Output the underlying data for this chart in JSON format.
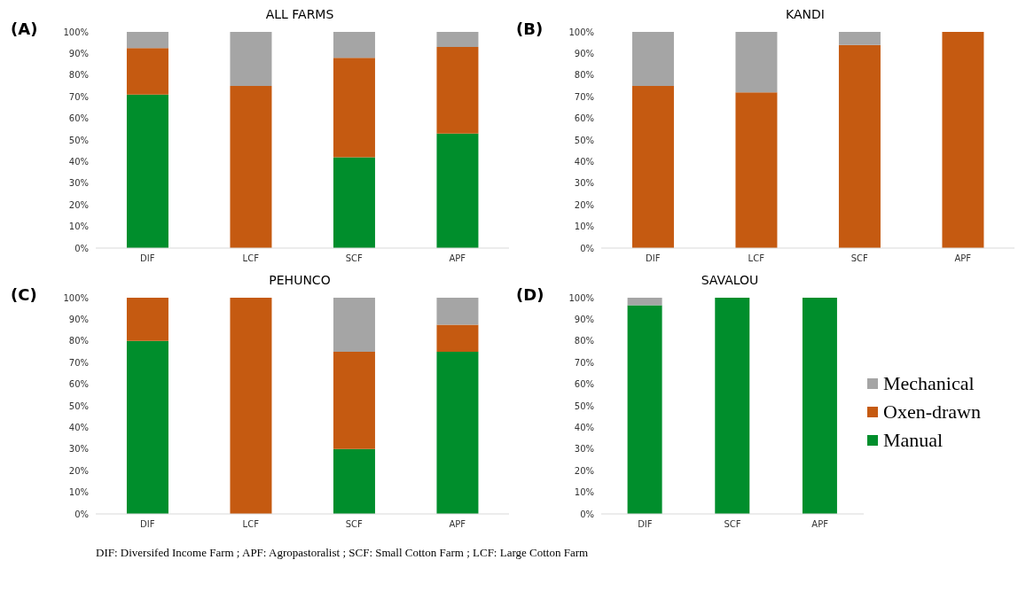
{
  "chart_data": [
    {
      "type": "bar",
      "title": "ALL FARMS",
      "annotations": [
        "(A)"
      ],
      "stacked": true,
      "categories": [
        "DIF",
        "LCF",
        "SCF",
        "APF"
      ],
      "ylim": [
        0,
        100
      ],
      "yticks": [
        {
          "value": 0,
          "label": "0%"
        },
        {
          "value": 10,
          "label": "10%"
        },
        {
          "value": 20,
          "label": "20%"
        },
        {
          "value": 30,
          "label": "30%"
        },
        {
          "value": 40,
          "label": "40%"
        },
        {
          "value": 50,
          "label": "50%"
        },
        {
          "value": 60,
          "label": "60%"
        },
        {
          "value": 70,
          "label": "70%"
        },
        {
          "value": 80,
          "label": "80%"
        },
        {
          "value": 90,
          "label": "90%"
        },
        {
          "value": 100,
          "label": "100%"
        }
      ],
      "grid": false,
      "series": [
        {
          "color": "#008e2c",
          "values": [
            71,
            0,
            42,
            53
          ]
        },
        {
          "color": "#c55a11",
          "values": [
            21.5,
            75,
            46,
            40
          ]
        },
        {
          "color": "#a5a5a5",
          "values": [
            7.5,
            25,
            12,
            7
          ]
        }
      ]
    },
    {
      "type": "bar",
      "title": "KANDI",
      "annotations": [
        "(B)"
      ],
      "stacked": true,
      "categories": [
        "DIF",
        "LCF",
        "SCF",
        "APF"
      ],
      "ylim": [
        0,
        100
      ],
      "yticks": [
        {
          "value": 0,
          "label": "0%"
        },
        {
          "value": 10,
          "label": "10%"
        },
        {
          "value": 20,
          "label": "20%"
        },
        {
          "value": 30,
          "label": "30%"
        },
        {
          "value": 40,
          "label": "40%"
        },
        {
          "value": 50,
          "label": "50%"
        },
        {
          "value": 60,
          "label": "60%"
        },
        {
          "value": 70,
          "label": "70%"
        },
        {
          "value": 80,
          "label": "80%"
        },
        {
          "value": 90,
          "label": "90%"
        },
        {
          "value": 100,
          "label": "100%"
        }
      ],
      "grid": false,
      "series": [
        {
          "color": "#008e2c",
          "values": [
            0,
            0,
            0,
            0
          ]
        },
        {
          "color": "#c55a11",
          "values": [
            75,
            72,
            94,
            100
          ]
        },
        {
          "color": "#a5a5a5",
          "values": [
            25,
            28,
            6,
            0
          ]
        }
      ]
    },
    {
      "type": "bar",
      "title": "PEHUNCO",
      "annotations": [
        "(C)"
      ],
      "stacked": true,
      "categories": [
        "DIF",
        "LCF",
        "SCF",
        "APF"
      ],
      "ylim": [
        0,
        100
      ],
      "yticks": [
        {
          "value": 0,
          "label": "0%"
        },
        {
          "value": 10,
          "label": "10%"
        },
        {
          "value": 20,
          "label": "20%"
        },
        {
          "value": 30,
          "label": "30%"
        },
        {
          "value": 40,
          "label": "40%"
        },
        {
          "value": 50,
          "label": "50%"
        },
        {
          "value": 60,
          "label": "60%"
        },
        {
          "value": 70,
          "label": "70%"
        },
        {
          "value": 80,
          "label": "80%"
        },
        {
          "value": 90,
          "label": "90%"
        },
        {
          "value": 100,
          "label": "100%"
        }
      ],
      "grid": false,
      "series": [
        {
          "color": "#008e2c",
          "values": [
            80,
            0,
            30,
            75
          ]
        },
        {
          "color": "#c55a11",
          "values": [
            20,
            100,
            45,
            12.5
          ]
        },
        {
          "color": "#a5a5a5",
          "values": [
            0,
            0,
            25,
            12.5
          ]
        }
      ]
    },
    {
      "type": "bar",
      "title": "SAVALOU",
      "annotations": [
        "(D)",
        "DIF: Diversifed  Income  Farm  ; APF:  Agropastoralist  ; SCF:  Small  Cotton  Farm ; LCF:  Large  Cotton Farm"
      ],
      "stacked": true,
      "categories": [
        "DIF",
        "SCF",
        "APF"
      ],
      "ylim": [
        0,
        100
      ],
      "yticks": [
        {
          "value": 0,
          "label": "0%"
        },
        {
          "value": 10,
          "label": "10%"
        },
        {
          "value": 20,
          "label": "20%"
        },
        {
          "value": 30,
          "label": "30%"
        },
        {
          "value": 40,
          "label": "40%"
        },
        {
          "value": 50,
          "label": "50%"
        },
        {
          "value": 60,
          "label": "60%"
        },
        {
          "value": 70,
          "label": "70%"
        },
        {
          "value": 80,
          "label": "80%"
        },
        {
          "value": 90,
          "label": "90%"
        },
        {
          "value": 100,
          "label": "100%"
        }
      ],
      "grid": false,
      "legend": "right",
      "series": [
        {
          "name": "Manual",
          "color": "#008e2c",
          "values": [
            96.5,
            100,
            100
          ]
        },
        {
          "name": "Oxen-drawn",
          "color": "#c55a11",
          "values": [
            0,
            0,
            0
          ]
        },
        {
          "name": "Mechanical",
          "color": "#a5a5a5",
          "values": [
            3.5,
            0,
            0
          ]
        }
      ]
    }
  ]
}
